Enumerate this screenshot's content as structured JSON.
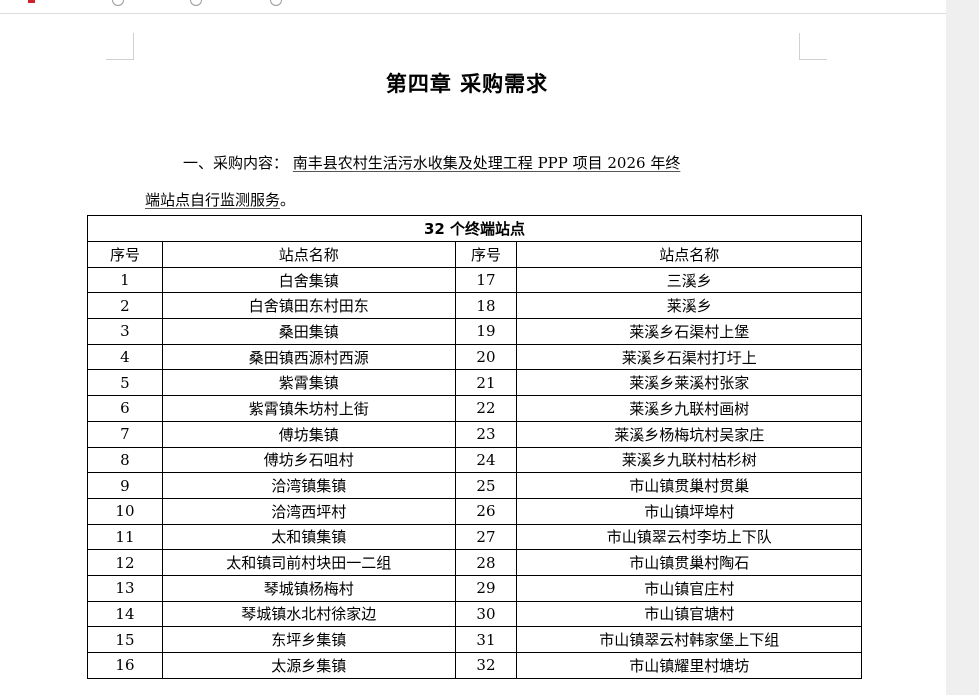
{
  "document": {
    "heading": "第四章 采购需求",
    "para_prefix": "一、采购内容：",
    "para_underlined_1": "南丰县农村生活污水收集及处理工程 PPP 项目 2026 年终",
    "para_underlined_2": "端站点自行监测服务",
    "para_end": "。"
  },
  "table": {
    "caption": "32 个终端站点",
    "headers": [
      "序号",
      "站点名称",
      "序号",
      "站点名称"
    ],
    "rows": [
      [
        "1",
        "白舍集镇",
        "17",
        "三溪乡"
      ],
      [
        "2",
        "白舍镇田东村田东",
        "18",
        "莱溪乡"
      ],
      [
        "3",
        "桑田集镇",
        "19",
        "莱溪乡石渠村上堡"
      ],
      [
        "4",
        "桑田镇西源村西源",
        "20",
        "莱溪乡石渠村打圩上"
      ],
      [
        "5",
        "紫霄集镇",
        "21",
        "莱溪乡莱溪村张家"
      ],
      [
        "6",
        "紫霄镇朱坊村上街",
        "22",
        "莱溪乡九联村画树"
      ],
      [
        "7",
        "傅坊集镇",
        "23",
        "莱溪乡杨梅坑村吴家庄"
      ],
      [
        "8",
        "傅坊乡石咀村",
        "24",
        "莱溪乡九联村枯杉树"
      ],
      [
        "9",
        "洽湾镇集镇",
        "25",
        "市山镇贯巢村贯巢"
      ],
      [
        "10",
        "洽湾西坪村",
        "26",
        "市山镇坪埠村"
      ],
      [
        "11",
        "太和镇集镇",
        "27",
        "市山镇翠云村李坊上下队"
      ],
      [
        "12",
        "太和镇司前村块田一二组",
        "28",
        "市山镇贯巢村陶石"
      ],
      [
        "13",
        "琴城镇杨梅村",
        "29",
        "市山镇官庄村"
      ],
      [
        "14",
        "琴城镇水北村徐家边",
        "30",
        "市山镇官塘村"
      ],
      [
        "15",
        "东坪乡集镇",
        "31",
        "市山镇翠云村韩家堡上下组"
      ],
      [
        "16",
        "太源乡集镇",
        "32",
        "市山镇耀里村塘坊"
      ]
    ]
  }
}
